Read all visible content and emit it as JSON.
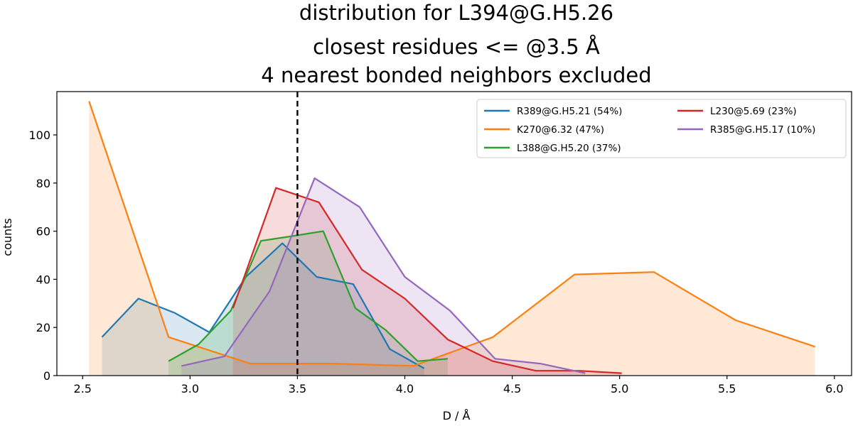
{
  "chart_data": {
    "type": "line",
    "title_lines": [
      "distribution for L394@G.H5.26",
      "closest residues <= @3.5 Å",
      "4 nearest bonded neighbors excluded"
    ],
    "xlabel": "D / Å",
    "ylabel": "counts",
    "xlim": [
      2.38,
      6.08
    ],
    "ylim": [
      0,
      118
    ],
    "xticks": [
      2.5,
      3.0,
      3.5,
      4.0,
      4.5,
      5.0,
      5.5,
      6.0
    ],
    "xtick_labels": [
      "2.5",
      "3.0",
      "3.5",
      "4.0",
      "4.5",
      "5.0",
      "5.5",
      "6.0"
    ],
    "yticks": [
      0,
      20,
      40,
      60,
      80,
      100
    ],
    "ytick_labels": [
      "0",
      "20",
      "40",
      "60",
      "80",
      "100"
    ],
    "cutoff": 3.5,
    "grid": false,
    "legend_position": "top-right",
    "legend_columns": 2,
    "series": [
      {
        "name": "R389@G.H5.21 (54%)",
        "color": "#1f77b4",
        "x": [
          2.59,
          2.76,
          2.93,
          3.09,
          3.26,
          3.43,
          3.59,
          3.76,
          3.93,
          4.09
        ],
        "y": [
          16,
          32,
          26,
          18,
          41,
          55,
          41,
          38,
          11,
          3
        ]
      },
      {
        "name": "K270@6.32 (47%)",
        "color": "#ff7f0e",
        "x": [
          2.53,
          2.9,
          3.28,
          3.66,
          4.04,
          4.41,
          4.79,
          5.16,
          5.54,
          5.91
        ],
        "y": [
          114,
          16,
          5,
          5,
          4,
          16,
          42,
          43,
          23,
          12
        ]
      },
      {
        "name": "L388@G.H5.20 (37%)",
        "color": "#2ca02c",
        "x": [
          2.9,
          3.04,
          3.19,
          3.33,
          3.48,
          3.62,
          3.77,
          3.91,
          4.06,
          4.2
        ],
        "y": [
          6,
          13,
          27,
          56,
          58,
          60,
          28,
          19,
          6,
          7
        ]
      },
      {
        "name": "L230@5.69 (23%)",
        "color": "#d62728",
        "x": [
          3.2,
          3.4,
          3.6,
          3.8,
          4.0,
          4.2,
          4.41,
          4.61,
          4.81,
          5.01
        ],
        "y": [
          28,
          78,
          72,
          44,
          32,
          15,
          6,
          2,
          2,
          1
        ]
      },
      {
        "name": "R385@G.H5.17 (10%)",
        "color": "#9467bd",
        "x": [
          2.96,
          3.16,
          3.37,
          3.58,
          3.79,
          4.0,
          4.21,
          4.42,
          4.63,
          4.84
        ],
        "y": [
          4,
          8,
          35,
          82,
          70,
          41,
          27,
          7,
          5,
          1
        ]
      }
    ]
  }
}
